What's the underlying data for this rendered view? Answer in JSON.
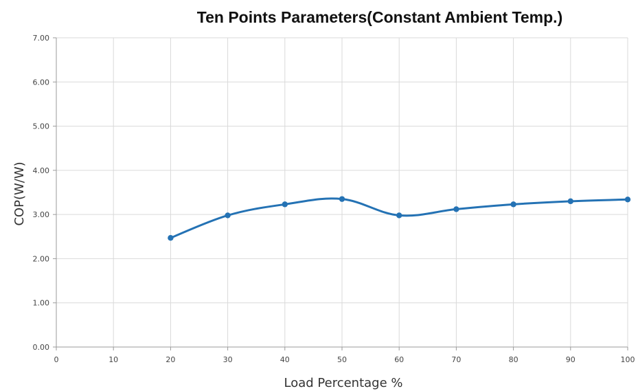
{
  "chart_data": {
    "type": "line",
    "title": "Ten Points Parameters(Constant Ambient Temp.)",
    "xlabel": "Load Percentage  %",
    "ylabel": "COP(W/W)",
    "xlim": [
      0,
      100
    ],
    "ylim": [
      0,
      7
    ],
    "x_ticks": [
      "0",
      "10",
      "20",
      "30",
      "40",
      "50",
      "60",
      "70",
      "80",
      "90",
      "100"
    ],
    "y_ticks": [
      "0.00",
      "1.00",
      "2.00",
      "3.00",
      "4.00",
      "5.00",
      "6.00",
      "7.00"
    ],
    "grid": true,
    "smooth": true,
    "series": [
      {
        "x": [
          20,
          30,
          40,
          50,
          60,
          70,
          80,
          90,
          100
        ],
        "values": [
          2.47,
          2.98,
          3.23,
          3.35,
          2.98,
          3.12,
          3.23,
          3.3,
          3.34
        ]
      }
    ],
    "colors": {
      "line": "#2472B4",
      "marker": "#2472B4",
      "grid": "#D9D9D9",
      "axis": "#9A9A9A"
    }
  }
}
